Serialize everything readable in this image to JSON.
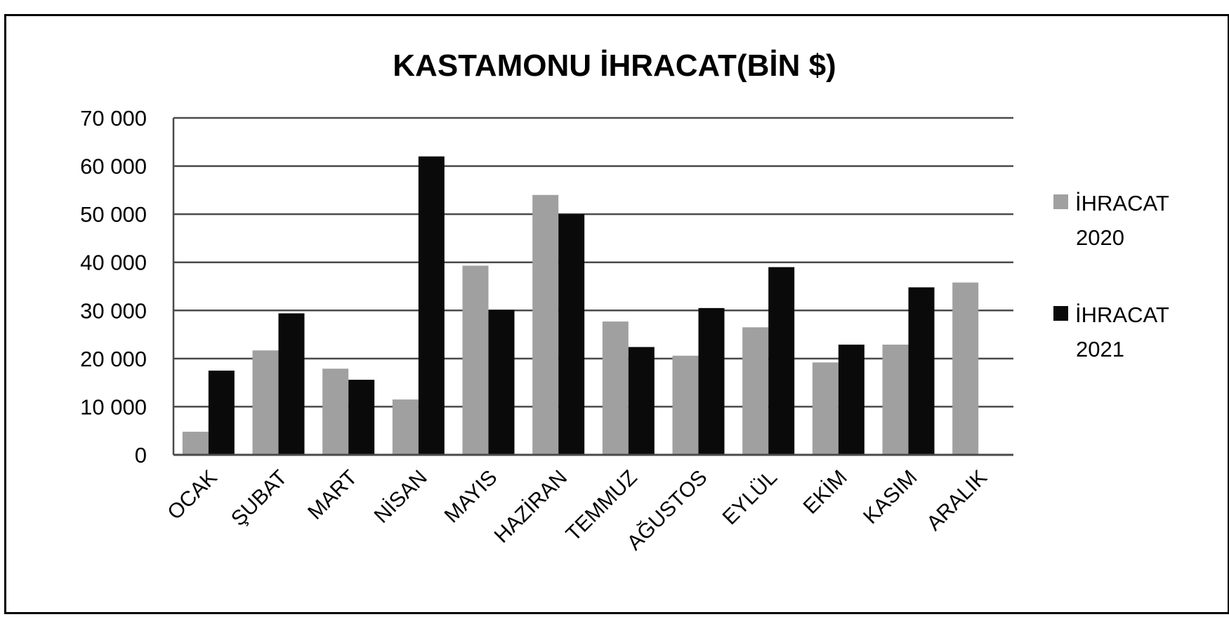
{
  "chart_data": {
    "type": "bar",
    "title": "KASTAMONU İHRACAT(BİN $)",
    "xlabel": "",
    "ylabel": "",
    "ylim": [
      0,
      70000
    ],
    "yticks": [
      0,
      10000,
      20000,
      30000,
      40000,
      50000,
      60000,
      70000
    ],
    "ytick_labels": [
      "0",
      "10 000",
      "20 000",
      "30 000",
      "40 000",
      "50 000",
      "60 000",
      "70 000"
    ],
    "grid": true,
    "legend_position": "right",
    "categories": [
      "OCAK",
      "ŞUBAT",
      "MART",
      "NİSAN",
      "MAYIS",
      "HAZİRAN",
      "TEMMUZ",
      "AĞUSTOS",
      "EYLÜL",
      "EKİM",
      "KASIM",
      "ARALIK"
    ],
    "series": [
      {
        "name": "İHRACAT 2020",
        "legend_lines": [
          "İHRACAT",
          "2020"
        ],
        "color": "#a0a0a0",
        "values": [
          4800,
          21700,
          17900,
          11500,
          39300,
          54000,
          27700,
          20600,
          26500,
          19200,
          22900,
          35800
        ]
      },
      {
        "name": "İHRACAT 2021",
        "legend_lines": [
          "İHRACAT",
          "2021"
        ],
        "color": "#0a0a0a",
        "values": [
          17500,
          29400,
          15600,
          62000,
          30100,
          50000,
          22400,
          30500,
          39000,
          22900,
          34800,
          null
        ]
      }
    ]
  }
}
